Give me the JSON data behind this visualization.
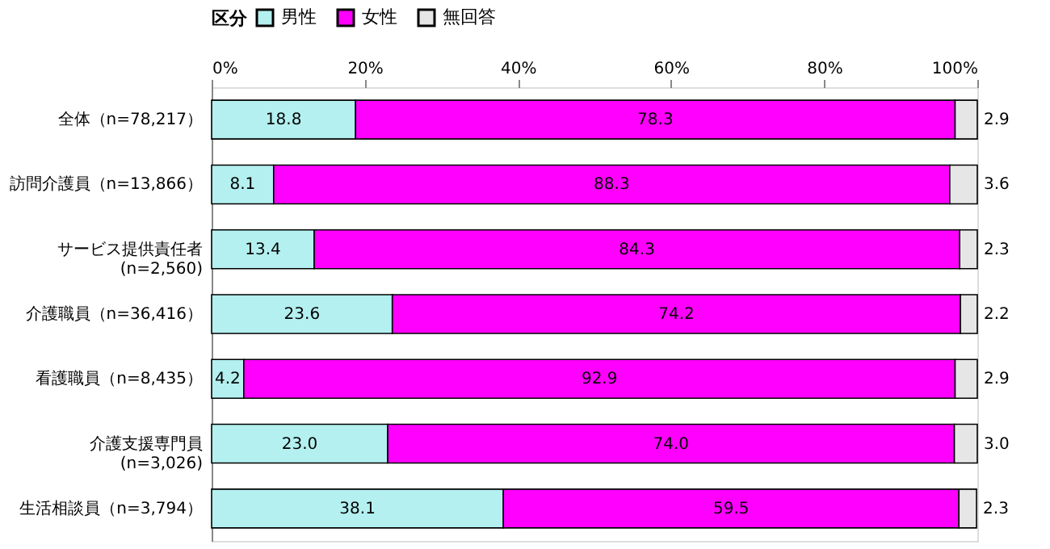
{
  "chart_data": {
    "type": "bar",
    "orientation": "horizontal",
    "stacked": true,
    "legend": "top",
    "legend_title": "区分",
    "grid": false,
    "categories": [
      "全体（n=78,217）",
      "訪問介護員（n=13,866）",
      "サービス提供責任者\n(n=2,560)",
      "介護職員（n=36,416）",
      "看護職員（n=8,435）",
      "介護支援専門員\n(n=3,026)",
      "生活相談員（n=3,794）"
    ],
    "series": [
      {
        "name": "男性",
        "color": "#b4f0f0",
        "values": [
          18.8,
          8.1,
          13.4,
          23.6,
          4.2,
          23.0,
          38.1
        ],
        "value_labels": [
          "18.8",
          "8.1",
          "13.4",
          "23.6",
          "4.2",
          "23.0",
          "38.1"
        ]
      },
      {
        "name": "女性",
        "color": "#ff00ff",
        "values": [
          78.3,
          88.3,
          84.3,
          74.2,
          92.9,
          74.0,
          59.5
        ],
        "value_labels": [
          "78.3",
          "88.3",
          "84.3",
          "74.2",
          "92.9",
          "74.0",
          "59.5"
        ]
      },
      {
        "name": "無回答",
        "color": "#e6e6e6",
        "values": [
          2.9,
          3.6,
          2.3,
          2.2,
          2.9,
          3.0,
          2.3
        ],
        "value_labels": [
          "2.9",
          "3.6",
          "2.3",
          "2.2",
          "2.9",
          "3.0",
          "2.3"
        ]
      }
    ],
    "xlim": [
      0,
      100
    ],
    "xticks": [
      {
        "value": 0,
        "label": "0%"
      },
      {
        "value": 20,
        "label": "20%"
      },
      {
        "value": 40,
        "label": "40%"
      },
      {
        "value": 60,
        "label": "60%"
      },
      {
        "value": 80,
        "label": "80%"
      },
      {
        "value": 100,
        "label": "100%"
      }
    ]
  }
}
